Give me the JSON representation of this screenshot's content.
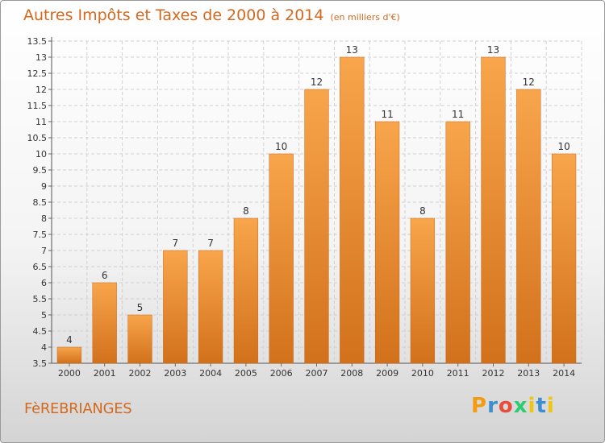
{
  "header": {
    "title": "Autres Impôts et Taxes de 2000 à 2014",
    "unit": "(en milliers d'€)"
  },
  "footer": {
    "commune": "FèREBRIANGES",
    "logo": "Proxiti"
  },
  "colors": {
    "bar_light": "#f8a54c",
    "bar_dark": "#d2711b",
    "text": "#d2691e"
  },
  "chart_data": {
    "type": "bar",
    "title": "Autres Impôts et Taxes de 2000 à 2014",
    "subtitle": "(en milliers d'€)",
    "xlabel": "",
    "ylabel": "",
    "categories": [
      "2000",
      "2001",
      "2002",
      "2003",
      "2004",
      "2005",
      "2006",
      "2007",
      "2008",
      "2009",
      "2010",
      "2011",
      "2012",
      "2013",
      "2014"
    ],
    "values": [
      4,
      6,
      5,
      7,
      7,
      8,
      10,
      12,
      13,
      11,
      8,
      11,
      13,
      12,
      10
    ],
    "data_labels": [
      "4",
      "6",
      "5",
      "7",
      "7",
      "8",
      "10",
      "12",
      "13",
      "11",
      "8",
      "11",
      "13",
      "12",
      "10"
    ],
    "yticks": [
      "3.5",
      "4",
      "4.5",
      "5",
      "5.5",
      "6",
      "6.5",
      "7",
      "7.5",
      "8",
      "8.5",
      "9",
      "9.5",
      "10",
      "10.5",
      "11",
      "11.5",
      "12",
      "12.5",
      "13",
      "13.5"
    ],
    "ylim": [
      3.5,
      13.5
    ],
    "grid": true,
    "legend": "none"
  }
}
